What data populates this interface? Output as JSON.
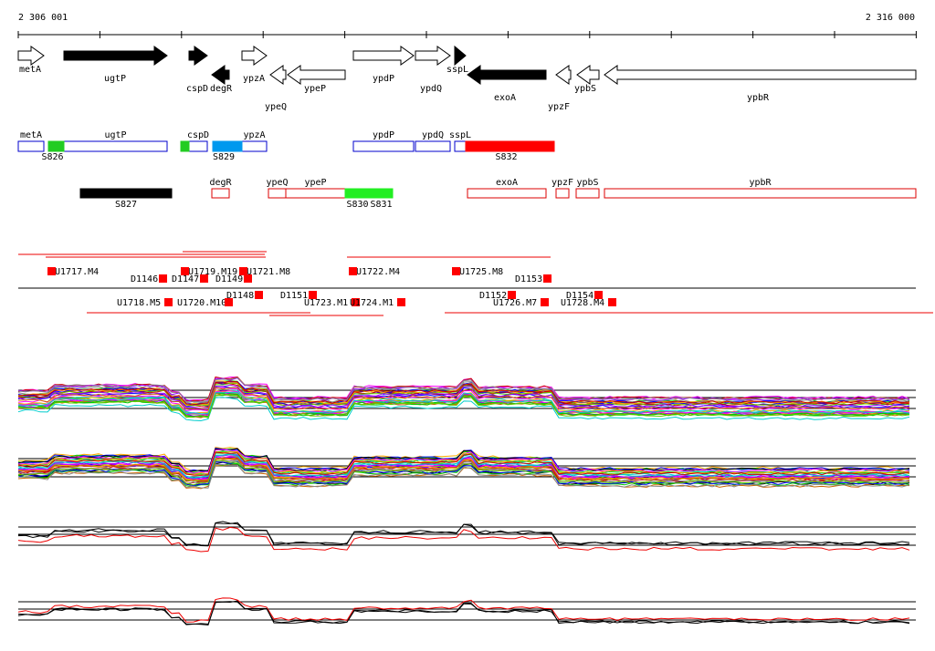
{
  "ruler": {
    "start": "2 306 001",
    "end": "2 316 000"
  },
  "genes": [
    "metA",
    "ugtP",
    "cspD",
    "degR",
    "ypzA",
    "ypeQ",
    "ypeP",
    "ypdP",
    "ypdQ",
    "sspL",
    "exoA",
    "ypzF",
    "ypbS",
    "ypbR"
  ],
  "upper_features": [
    "metA",
    "ugtP",
    "S826",
    "cspD",
    "ypzA",
    "S829",
    "ypdP",
    "ypdQ",
    "sspL",
    "S832"
  ],
  "lower_features": [
    "S827",
    "degR",
    "ypeQ",
    "ypeP",
    "S830",
    "S831",
    "exoA",
    "ypzF",
    "ypbS",
    "ypbR"
  ],
  "transcription_units": [
    "U1717.M4",
    "D1146",
    "D1147",
    "U1719.M19",
    "D1149",
    "U1721.M8",
    "U1722.M4",
    "U1725.M8",
    "D1153",
    "U1718.M5",
    "U1720.M10",
    "D1148",
    "D1151",
    "U1723.M1",
    "U1724.M1",
    "D1152",
    "U1726.M7",
    "D1154",
    "U1728.M4"
  ]
}
